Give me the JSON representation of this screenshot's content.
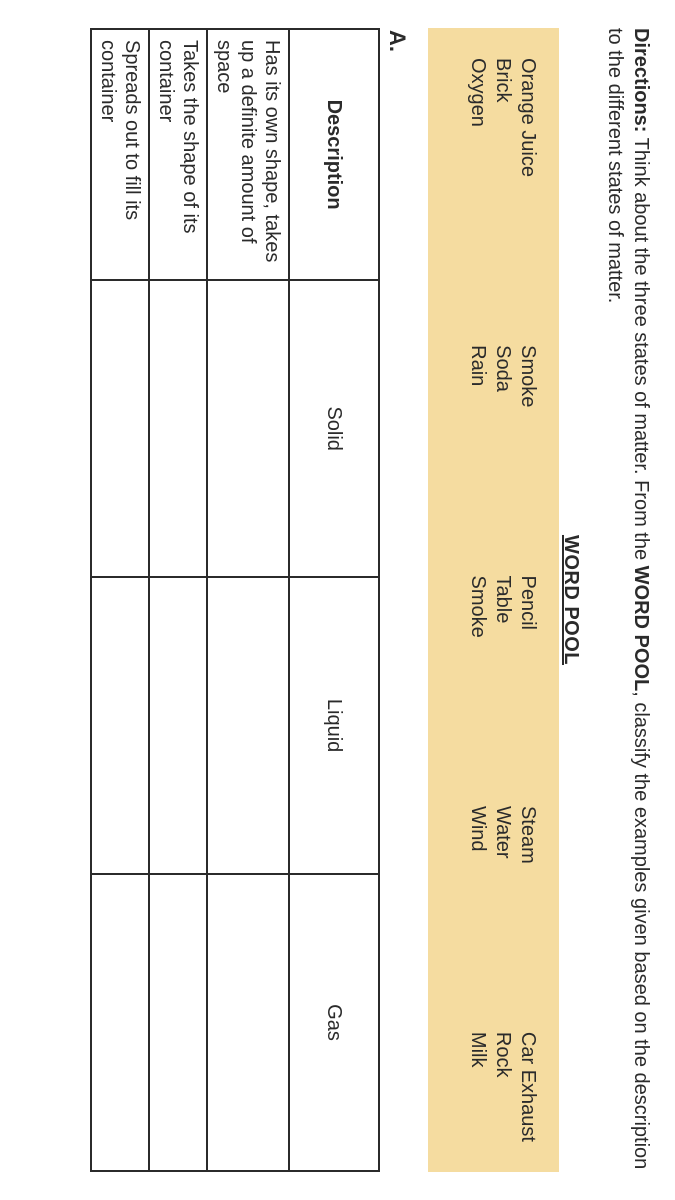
{
  "colors": {
    "wordpool_bg": "#f5dca0",
    "text": "#2b2b2b",
    "border": "#2b2b2b",
    "page_bg": "#ffffff"
  },
  "directions": {
    "label": "Directions:",
    "text_before": "Think about the three states of matter. From the ",
    "emph": "WORD POOL",
    "text_after": ", classify the examples given based on the description to the different states of matter."
  },
  "wordpool": {
    "title": "WORD POOL",
    "columns": [
      [
        "Orange Juice",
        "Brick",
        "Oxygen"
      ],
      [
        "Smoke",
        "Soda",
        "Rain"
      ],
      [
        "Pencil",
        "Table",
        "Smoke"
      ],
      [
        "Steam",
        "Water",
        "Wind"
      ],
      [
        "Car Exhaust",
        "Rock",
        "Milk"
      ]
    ]
  },
  "section_label": "A.",
  "table": {
    "headers": [
      "Description",
      "Solid",
      "Liquid",
      "Gas"
    ],
    "rows": [
      [
        "Has its own shape, takes up a definite amount of space",
        "",
        "",
        ""
      ],
      [
        "Takes the shape of its container",
        "",
        "",
        ""
      ],
      [
        "Spreads out to fill its container",
        "",
        "",
        ""
      ]
    ]
  }
}
